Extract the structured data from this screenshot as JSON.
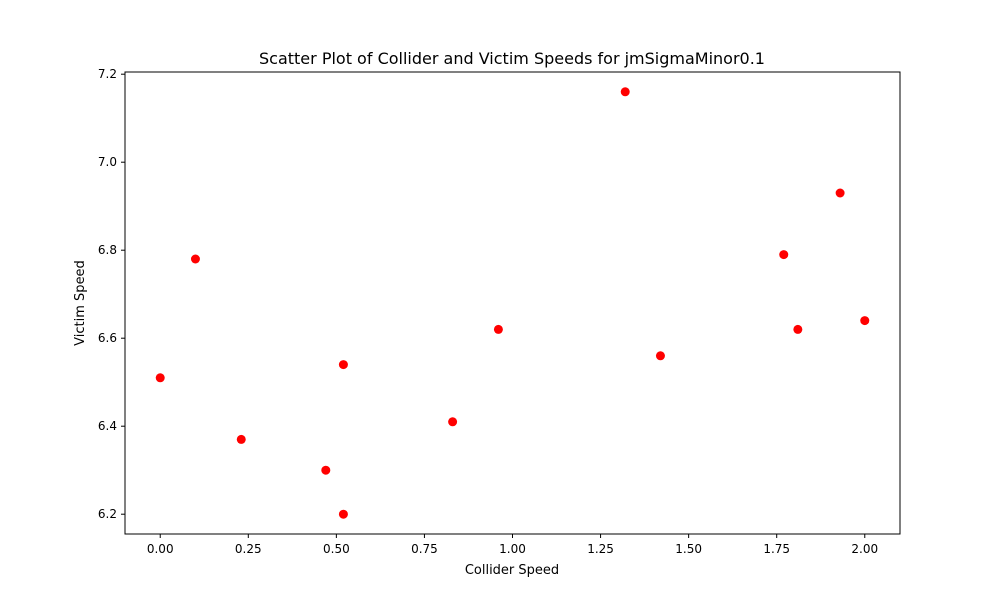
{
  "chart_data": {
    "type": "scatter",
    "title": "Scatter Plot of Collider and Victim Speeds for jmSigmaMinor0.1",
    "xlabel": "Collider Speed",
    "ylabel": "Victim Speed",
    "xlim": [
      -0.1,
      2.1
    ],
    "ylim": [
      6.155,
      7.205
    ],
    "xticks": [
      "0.00",
      "0.25",
      "0.50",
      "0.75",
      "1.00",
      "1.25",
      "1.50",
      "1.75",
      "2.00"
    ],
    "yticks": [
      "6.2",
      "6.4",
      "6.6",
      "6.8",
      "7.0",
      "7.2"
    ],
    "grid": false,
    "marker_color": "#ff0000",
    "points": [
      {
        "x": 0.0,
        "y": 6.51
      },
      {
        "x": 0.1,
        "y": 6.78
      },
      {
        "x": 0.23,
        "y": 6.37
      },
      {
        "x": 0.47,
        "y": 6.3
      },
      {
        "x": 0.52,
        "y": 6.54
      },
      {
        "x": 0.52,
        "y": 6.2
      },
      {
        "x": 0.83,
        "y": 6.41
      },
      {
        "x": 0.96,
        "y": 6.62
      },
      {
        "x": 1.32,
        "y": 7.16
      },
      {
        "x": 1.42,
        "y": 6.56
      },
      {
        "x": 1.77,
        "y": 6.79
      },
      {
        "x": 1.81,
        "y": 6.62
      },
      {
        "x": 1.93,
        "y": 6.93
      },
      {
        "x": 2.0,
        "y": 6.64
      }
    ]
  }
}
